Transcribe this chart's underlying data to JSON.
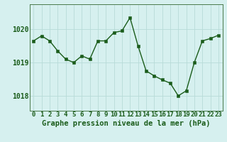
{
  "x": [
    0,
    1,
    2,
    3,
    4,
    5,
    6,
    7,
    8,
    9,
    10,
    11,
    12,
    13,
    14,
    15,
    16,
    17,
    18,
    19,
    20,
    21,
    22,
    23
  ],
  "y": [
    1019.65,
    1019.8,
    1019.65,
    1019.35,
    1019.1,
    1019.0,
    1019.2,
    1019.1,
    1019.65,
    1019.65,
    1019.9,
    1019.95,
    1020.35,
    1019.5,
    1018.75,
    1018.6,
    1018.48,
    1018.38,
    1018.0,
    1018.15,
    1019.0,
    1019.65,
    1019.72,
    1019.82
  ],
  "line_color": "#1a5c1a",
  "marker_color": "#1a5c1a",
  "bg_color": "#d6f0ef",
  "grid_color": "#b8dbd8",
  "title": "Graphe pression niveau de la mer (hPa)",
  "ylabel_ticks": [
    1018,
    1019,
    1020
  ],
  "ylim": [
    1017.55,
    1020.75
  ],
  "xlim": [
    -0.5,
    23.5
  ],
  "xtick_labels": [
    "0",
    "1",
    "2",
    "3",
    "4",
    "5",
    "6",
    "7",
    "8",
    "9",
    "10",
    "11",
    "12",
    "13",
    "14",
    "15",
    "16",
    "17",
    "18",
    "19",
    "20",
    "21",
    "22",
    "23"
  ],
  "title_fontsize": 7.5,
  "tick_fontsize": 6.5,
  "ytick_fontsize": 7.0,
  "marker_size": 2.5,
  "line_width": 1.0
}
